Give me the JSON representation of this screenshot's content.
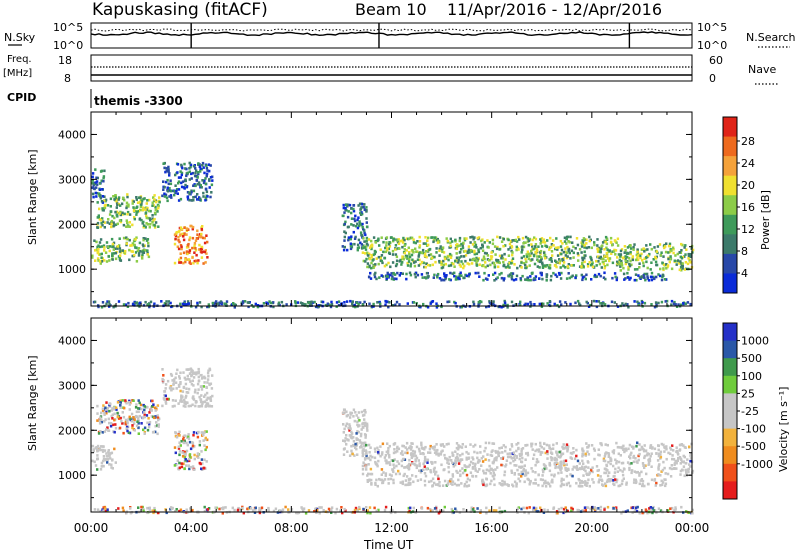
{
  "header": {
    "station": "Kapuskasing (fitACF)",
    "beam": "Beam 10",
    "dates": "11/Apr/2016 - 12/Apr/2016"
  },
  "top_panels": {
    "nsky_label": "N.Sky",
    "nsky_top": "10^5",
    "nsky_bottom": "10^0",
    "nsearch_label": "N.Search",
    "nsearch_top": "10^5",
    "nsearch_bottom": "10^0",
    "freq_label": "Freq.",
    "freq_unit": "[MHz]",
    "freq_top": "18",
    "freq_bottom": "8",
    "nave_top": "60",
    "nave_bottom": "0",
    "nave_label": "Nave",
    "cpid_label": "CPID",
    "cpid_value": "themis -3300"
  },
  "colors": {
    "power": [
      "#0a2bd8",
      "#2848a8",
      "#3c7a6a",
      "#3e9a5a",
      "#8ccc48",
      "#f0e030",
      "#f5a23a",
      "#ee6a1e",
      "#e02418"
    ],
    "velocity": [
      "#e51c1c",
      "#f0501a",
      "#ef8c1e",
      "#f2b23c",
      "#c6c6c6",
      "#c6c6c6",
      "#6fcc3c",
      "#3f9a4c",
      "#2a58a8",
      "#2430c8"
    ],
    "ground_scatter": "#c6c6c6"
  },
  "chart_data": [
    {
      "type": "heatmap",
      "name": "power",
      "xlabel": "",
      "ylabel": "Slant Range [km]",
      "x_ticks": [
        "00:00",
        "04:00",
        "08:00",
        "12:00",
        "16:00",
        "20:00",
        "00:00"
      ],
      "y_ticks": [
        "1000",
        "2000",
        "3000",
        "4000"
      ],
      "xlim_hours": [
        0,
        24
      ],
      "ylim_km": [
        180,
        4500
      ],
      "colorbar": {
        "label": "Power [dB]",
        "ticks": [
          "28",
          "24",
          "20",
          "16",
          "12",
          "8",
          "4"
        ],
        "range": [
          0,
          30
        ]
      },
      "regions": [
        {
          "t0": 0.0,
          "t1": 1.0,
          "r0": 1150,
          "r1": 1700,
          "level": "mid"
        },
        {
          "t0": 0.2,
          "t1": 2.7,
          "r0": 1950,
          "r1": 2700,
          "level": "mid"
        },
        {
          "t0": 0.0,
          "t1": 0.5,
          "r0": 2500,
          "r1": 3250,
          "level": "low"
        },
        {
          "t0": 1.0,
          "t1": 2.3,
          "r0": 1200,
          "r1": 1750,
          "level": "mid"
        },
        {
          "t0": 3.3,
          "t1": 4.6,
          "r0": 1150,
          "r1": 2000,
          "level": "high"
        },
        {
          "t0": 2.8,
          "t1": 4.8,
          "r0": 2550,
          "r1": 3400,
          "level": "low"
        },
        {
          "t0": 10.0,
          "t1": 11.0,
          "r0": 1450,
          "r1": 2500,
          "level": "low"
        },
        {
          "t0": 10.8,
          "t1": 21.0,
          "r0": 1050,
          "r1": 1750,
          "level": "mid"
        },
        {
          "t0": 21.0,
          "t1": 24.0,
          "r0": 1000,
          "r1": 1600,
          "level": "mid"
        },
        {
          "t0": 11.0,
          "t1": 23.0,
          "r0": 780,
          "r1": 950,
          "level": "low"
        },
        {
          "t0": 0.0,
          "t1": 24.0,
          "r0": 180,
          "r1": 320,
          "level": "low"
        }
      ]
    },
    {
      "type": "heatmap",
      "name": "velocity",
      "xlabel": "Time UT",
      "ylabel": "Slant Range [km]",
      "x_ticks": [
        "00:00",
        "04:00",
        "08:00",
        "12:00",
        "16:00",
        "20:00",
        "00:00"
      ],
      "y_ticks": [
        "1000",
        "2000",
        "3000",
        "4000"
      ],
      "xlim_hours": [
        0,
        24
      ],
      "ylim_km": [
        180,
        4500
      ],
      "colorbar": {
        "label": "Velocity [m s⁻¹]",
        "ticks": [
          "1000",
          "500",
          "100",
          "25",
          "-25",
          "-100",
          "-500",
          "-1000"
        ],
        "range": [
          -1000,
          1000
        ]
      },
      "regions": [
        {
          "t0": 0.0,
          "t1": 1.0,
          "r0": 1150,
          "r1": 1700,
          "level": "ground"
        },
        {
          "t0": 0.2,
          "t1": 2.7,
          "r0": 1950,
          "r1": 2700,
          "level": "mixed"
        },
        {
          "t0": 3.3,
          "t1": 4.6,
          "r0": 1150,
          "r1": 2000,
          "level": "mixed"
        },
        {
          "t0": 2.8,
          "t1": 4.8,
          "r0": 2550,
          "r1": 3400,
          "level": "ground"
        },
        {
          "t0": 10.0,
          "t1": 11.0,
          "r0": 1450,
          "r1": 2500,
          "level": "ground"
        },
        {
          "t0": 10.8,
          "t1": 24.0,
          "r0": 1000,
          "r1": 1750,
          "level": "ground"
        },
        {
          "t0": 11.0,
          "t1": 23.0,
          "r0": 780,
          "r1": 950,
          "level": "ground"
        },
        {
          "t0": 0.0,
          "t1": 24.0,
          "r0": 180,
          "r1": 320,
          "level": "mixed"
        }
      ]
    }
  ]
}
